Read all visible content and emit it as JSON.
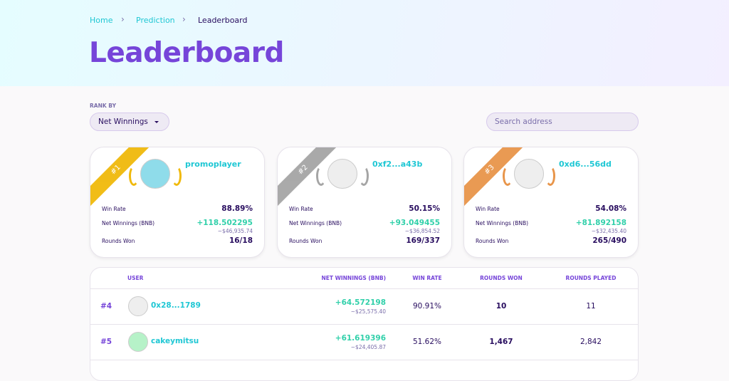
{
  "breadcrumb": [
    "Home",
    "Prediction",
    "Leaderboard"
  ],
  "title": "Leaderboard",
  "rank_by": {
    "label": "RANK BY",
    "selected": "Net Winnings"
  },
  "search": {
    "placeholder": "Search address"
  },
  "podium": [
    {
      "rank": "#1",
      "name": "promoplayer",
      "stats": [
        {
          "label": "Win Rate",
          "value": "88.89%"
        },
        {
          "label": "Net Winnings (BNB)",
          "value": "+118.502295",
          "sub": "~$46,935.74"
        },
        {
          "label": "Rounds Won",
          "value": "16/18"
        }
      ]
    },
    {
      "rank": "#2",
      "name": "0xf2...a43b",
      "stats": [
        {
          "label": "Win Rate",
          "value": "50.15%"
        },
        {
          "label": "Net Winnings (BNB)",
          "value": "+93.049455",
          "sub": "~$36,854.52"
        },
        {
          "label": "Rounds Won",
          "value": "169/337"
        }
      ]
    },
    {
      "rank": "#3",
      "name": "0xd6...56dd",
      "stats": [
        {
          "label": "Win Rate",
          "value": "54.08%"
        },
        {
          "label": "Net Winnings (BNB)",
          "value": "+81.892158",
          "sub": "~$32,435.40"
        },
        {
          "label": "Rounds Won",
          "value": "265/490"
        }
      ]
    }
  ],
  "table": {
    "headers": [
      "USER",
      "NET WINNINGS (BNB)",
      "WIN RATE",
      "ROUNDS WON",
      "ROUNDS PLAYED"
    ],
    "rows": [
      {
        "rank": "#4",
        "user": "0x28...1789",
        "net": "+64.572198",
        "usd": "~$25,575.40",
        "win_rate": "90.91%",
        "rounds_won": "10",
        "rounds_played": "11"
      },
      {
        "rank": "#5",
        "user": "cakeymitsu",
        "net": "+61.619396",
        "usd": "~$24,405.87",
        "win_rate": "51.62%",
        "rounds_won": "1,467",
        "rounds_played": "2,842"
      }
    ]
  }
}
